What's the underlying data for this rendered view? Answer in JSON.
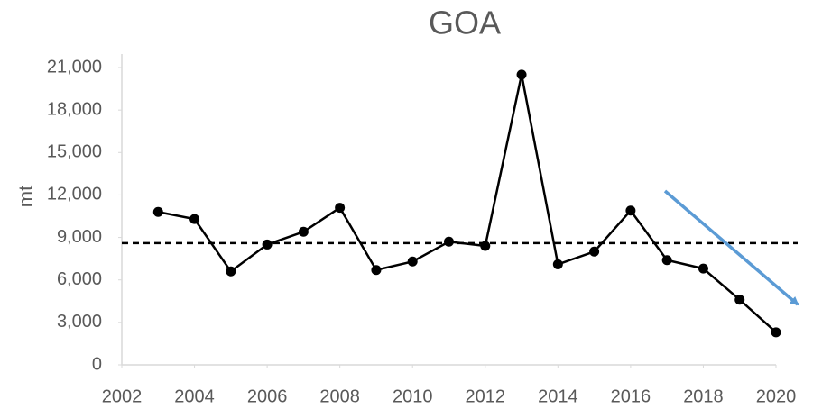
{
  "chart_data": {
    "type": "line",
    "title": "GOA",
    "y_label": "mt",
    "x": [
      2003,
      2004,
      2005,
      2006,
      2007,
      2008,
      2009,
      2010,
      2011,
      2012,
      2013,
      2014,
      2015,
      2016,
      2017,
      2018,
      2019,
      2020
    ],
    "values": [
      10800,
      10300,
      6600,
      8500,
      9400,
      11100,
      6700,
      7300,
      8700,
      8400,
      20500,
      7100,
      8000,
      10900,
      7400,
      6800,
      4600,
      2300
    ],
    "color": "#000000",
    "hline": 8600,
    "xlim": [
      2002,
      2020
    ],
    "xticks": [
      2002,
      2004,
      2006,
      2008,
      2010,
      2012,
      2014,
      2016,
      2018,
      2020
    ],
    "ylim": [
      0,
      21000
    ],
    "yticks": [
      0,
      {
        "value": 3000,
        "label": "3,000"
      },
      {
        "value": 6000,
        "label": "6,000"
      },
      {
        "value": 9000,
        "label": "9,000"
      },
      {
        "value": 12000,
        "label": "12,000"
      },
      {
        "value": 15000,
        "label": "15,000"
      },
      {
        "value": 18000,
        "label": "18,000"
      },
      {
        "value": 21000,
        "label": "21,000"
      }
    ],
    "grid": false
  }
}
